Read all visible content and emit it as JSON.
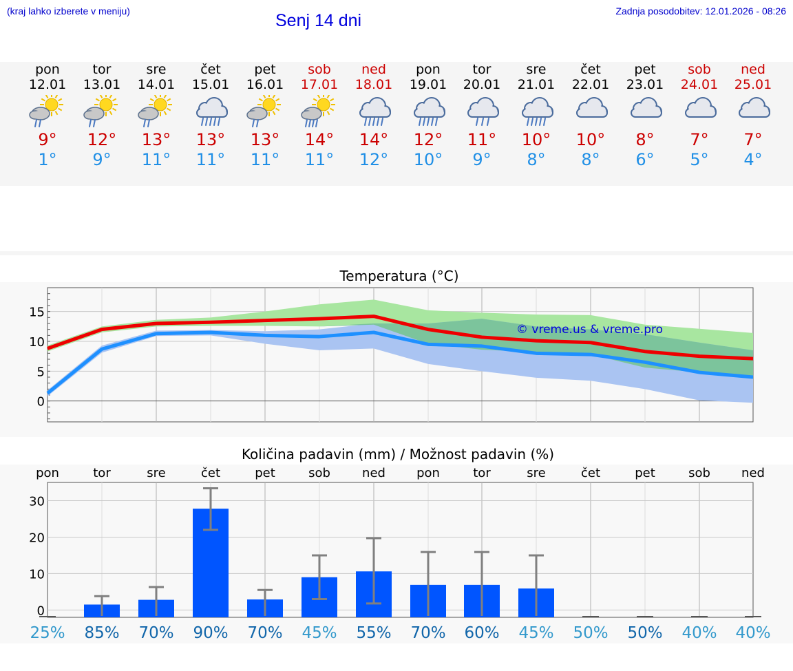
{
  "header": {
    "hint": "(kraj lahko izberete v meniju)",
    "title": "Senj 14 dni",
    "updated": "Zadnja posodobitev: 12.01.2026 - 08:26"
  },
  "days": [
    {
      "name": "pon",
      "date": "12.01",
      "max": "9°",
      "min": "1°",
      "weekend": false,
      "icon": "sun-cloud-rain-icon"
    },
    {
      "name": "tor",
      "date": "13.01",
      "max": "12°",
      "min": "9°",
      "weekend": false,
      "icon": "sun-cloud-rain-icon"
    },
    {
      "name": "sre",
      "date": "14.01",
      "max": "13°",
      "min": "11°",
      "weekend": false,
      "icon": "sun-cloud-rain-icon"
    },
    {
      "name": "čet",
      "date": "15.01",
      "max": "13°",
      "min": "11°",
      "weekend": false,
      "icon": "cloud-heavy-rain-icon"
    },
    {
      "name": "pet",
      "date": "16.01",
      "max": "13°",
      "min": "11°",
      "weekend": false,
      "icon": "sun-cloud-rain-icon"
    },
    {
      "name": "sob",
      "date": "17.01",
      "max": "14°",
      "min": "11°",
      "weekend": true,
      "icon": "sun-cloud-heavy-rain-icon"
    },
    {
      "name": "ned",
      "date": "18.01",
      "max": "14°",
      "min": "12°",
      "weekend": true,
      "icon": "cloud-heavy-rain-icon"
    },
    {
      "name": "pon",
      "date": "19.01",
      "max": "12°",
      "min": "10°",
      "weekend": false,
      "icon": "cloud-heavy-rain-icon"
    },
    {
      "name": "tor",
      "date": "20.01",
      "max": "11°",
      "min": "9°",
      "weekend": false,
      "icon": "cloud-rain-icon"
    },
    {
      "name": "sre",
      "date": "21.01",
      "max": "10°",
      "min": "8°",
      "weekend": false,
      "icon": "cloud-heavy-rain-icon"
    },
    {
      "name": "čet",
      "date": "22.01",
      "max": "10°",
      "min": "8°",
      "weekend": false,
      "icon": "cloud-icon"
    },
    {
      "name": "pet",
      "date": "23.01",
      "max": "8°",
      "min": "6°",
      "weekend": false,
      "icon": "cloud-icon"
    },
    {
      "name": "sob",
      "date": "24.01",
      "max": "7°",
      "min": "5°",
      "weekend": true,
      "icon": "cloud-icon"
    },
    {
      "name": "ned",
      "date": "25.01",
      "max": "7°",
      "min": "4°",
      "weekend": true,
      "icon": "cloud-icon"
    }
  ],
  "colors": {
    "max_line": "#ee0000",
    "min_line": "#1e90ff",
    "max_band": "#a8e6a0",
    "min_band": "#aac4f2",
    "overlap_band": "#7cc49c",
    "bar": "#0055ff",
    "errbar": "#808080",
    "weekend": "#cc0000"
  },
  "chart_data": [
    {
      "type": "line",
      "title": "Temperatura (°C)",
      "watermark": "© vreme.us & vreme.pro",
      "ylim": [
        -3.5,
        19
      ],
      "yticks": [
        0,
        5,
        10,
        15
      ],
      "x": [
        0,
        1,
        2,
        3,
        4,
        5,
        6,
        7,
        8,
        9,
        10,
        11,
        12,
        13
      ],
      "series": [
        {
          "name": "max",
          "values": [
            8.8,
            12.0,
            13.0,
            13.2,
            13.5,
            13.8,
            14.2,
            12.0,
            10.7,
            10.1,
            9.8,
            8.3,
            7.5,
            7.1
          ]
        },
        {
          "name": "min",
          "values": [
            1.3,
            8.7,
            11.3,
            11.5,
            11.0,
            10.8,
            11.5,
            9.5,
            9.2,
            8.0,
            7.8,
            6.5,
            4.8,
            4.0
          ]
        },
        {
          "name": "max_range_low",
          "values": [
            8.3,
            11.5,
            12.5,
            12.6,
            12.6,
            12.5,
            12.8,
            9.6,
            8.6,
            8.2,
            7.8,
            5.6,
            4.8,
            3.8
          ]
        },
        {
          "name": "max_range_high",
          "values": [
            9.3,
            12.5,
            13.6,
            14.0,
            15.0,
            16.2,
            17.0,
            15.2,
            14.8,
            14.5,
            14.4,
            12.8,
            12.1,
            11.4
          ]
        },
        {
          "name": "min_range_low",
          "values": [
            0.8,
            8.1,
            10.9,
            11.0,
            9.6,
            8.5,
            8.8,
            6.2,
            5.0,
            3.9,
            3.4,
            2.0,
            0.1,
            -0.3
          ]
        },
        {
          "name": "min_range_high",
          "values": [
            1.8,
            9.3,
            11.8,
            11.9,
            11.7,
            12.0,
            13.0,
            13.0,
            13.8,
            12.5,
            12.0,
            11.2,
            9.8,
            8.5
          ]
        }
      ]
    },
    {
      "type": "bar",
      "title": "Količina padavin (mm) / Možnost padavin (%)",
      "categories": [
        "pon",
        "tor",
        "sre",
        "čet",
        "pet",
        "sob",
        "ned",
        "pon",
        "tor",
        "sre",
        "čet",
        "pet",
        "sob",
        "ned"
      ],
      "ylim": [
        -2,
        35
      ],
      "yticks": [
        0,
        10,
        20,
        30
      ],
      "values": [
        0.0,
        1.5,
        2.8,
        27.8,
        2.9,
        9.0,
        10.6,
        6.9,
        6.9,
        5.9,
        0.0,
        0.0,
        0.0,
        0.0
      ],
      "err_low": [
        0.0,
        0.0,
        0.0,
        22.0,
        0.0,
        3.0,
        1.8,
        0.0,
        0.0,
        0.0,
        0.0,
        0.0,
        0.0,
        0.0
      ],
      "err_high": [
        0.0,
        3.8,
        6.3,
        33.4,
        5.5,
        15.0,
        19.7,
        15.9,
        15.9,
        15.0,
        0.0,
        0.0,
        0.0,
        0.0
      ],
      "chance": [
        "25%",
        "85%",
        "70%",
        "90%",
        "70%",
        "45%",
        "55%",
        "70%",
        "60%",
        "45%",
        "50%",
        "50%",
        "40%",
        "40%"
      ],
      "chance_colors": [
        "#3399cc",
        "#1166aa",
        "#1166aa",
        "#1166aa",
        "#1166aa",
        "#3399cc",
        "#1166aa",
        "#1166aa",
        "#1166aa",
        "#3399cc",
        "#3399cc",
        "#1166aa",
        "#3399cc",
        "#3399cc"
      ]
    }
  ]
}
